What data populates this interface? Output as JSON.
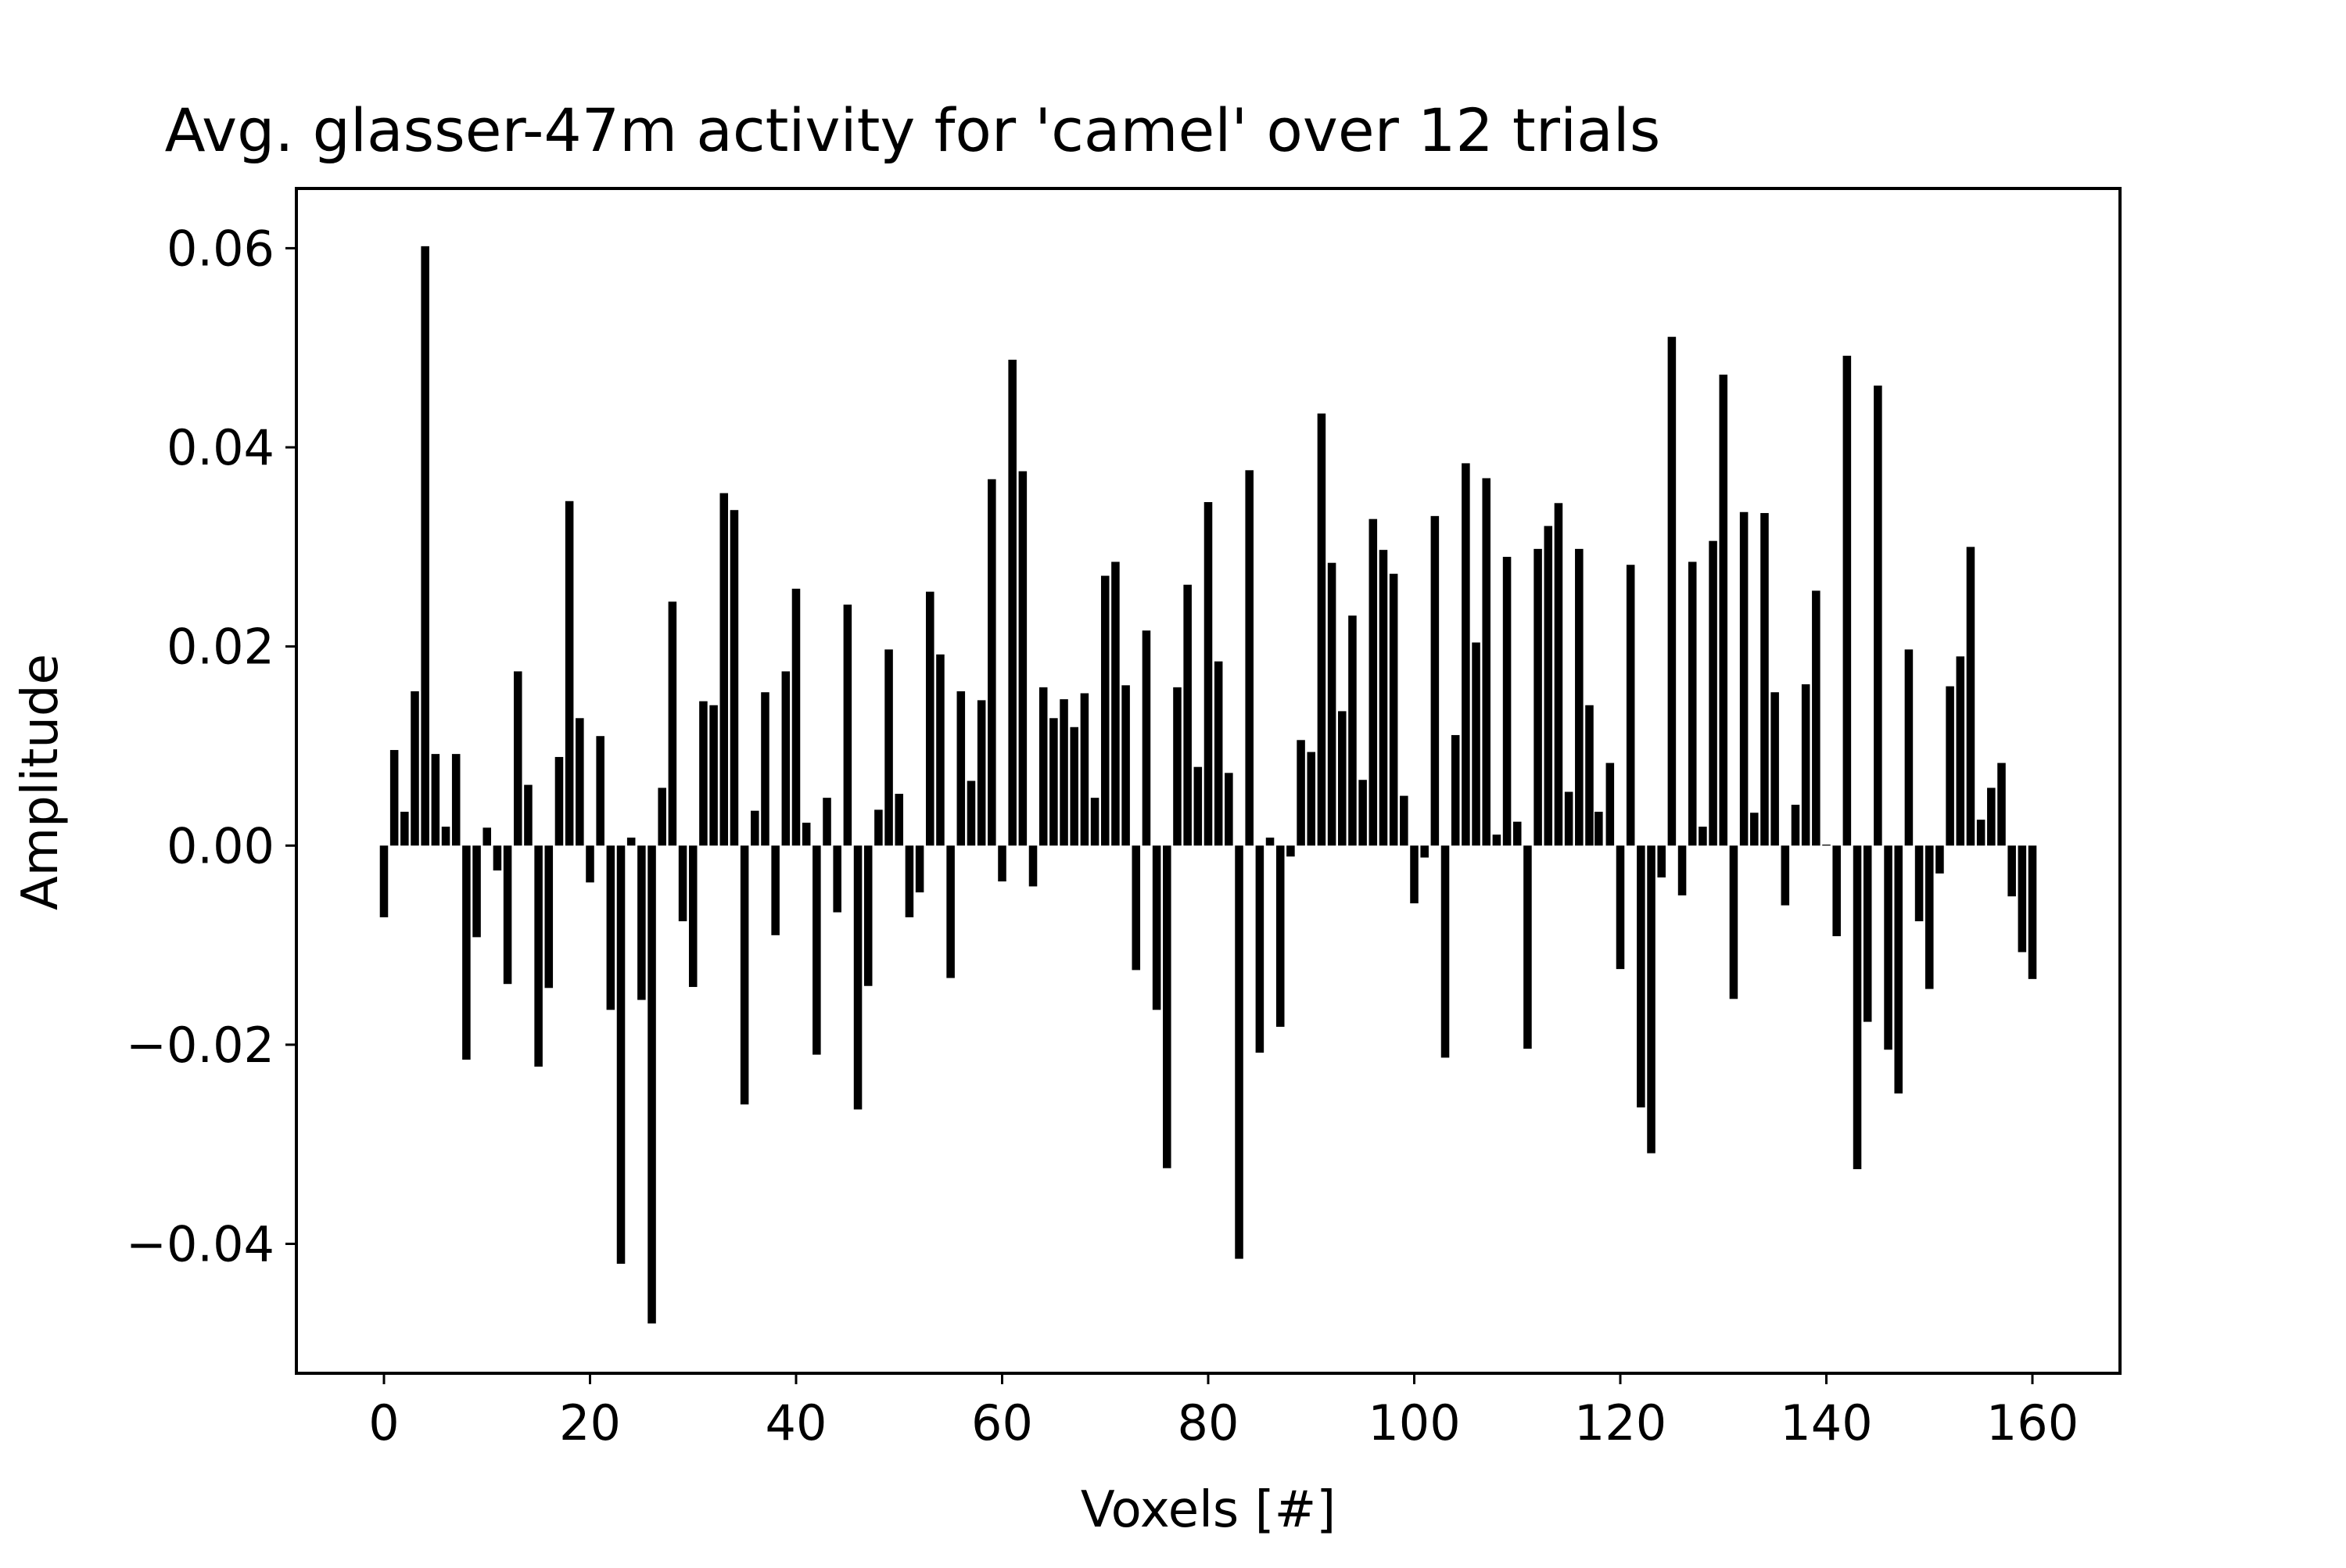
{
  "chart_data": {
    "type": "bar",
    "title": "Avg. glasser-47m activity for 'camel' over 12 trials",
    "xlabel": "Voxels [#]",
    "ylabel": "Amplitude",
    "xlim": [
      -8.5,
      168.5
    ],
    "ylim": [
      -0.053,
      0.066
    ],
    "xticks": [
      0,
      20,
      40,
      60,
      80,
      100,
      120,
      140,
      160
    ],
    "xtick_labels": [
      "0",
      "20",
      "40",
      "60",
      "80",
      "100",
      "120",
      "140",
      "160"
    ],
    "yticks": [
      -0.04,
      -0.02,
      0.0,
      0.02,
      0.04,
      0.06
    ],
    "ytick_labels": [
      "−0.04",
      "−0.02",
      "0.00",
      "0.02",
      "0.04",
      "0.06"
    ],
    "grid": false,
    "bar_color": "#000000",
    "bar_width": 0.8,
    "x": [
      0,
      1,
      2,
      3,
      4,
      5,
      6,
      7,
      8,
      9,
      10,
      11,
      12,
      13,
      14,
      15,
      16,
      17,
      18,
      19,
      20,
      21,
      22,
      23,
      24,
      25,
      26,
      27,
      28,
      29,
      30,
      31,
      32,
      33,
      34,
      35,
      36,
      37,
      38,
      39,
      40,
      41,
      42,
      43,
      44,
      45,
      46,
      47,
      48,
      49,
      50,
      51,
      52,
      53,
      54,
      55,
      56,
      57,
      58,
      59,
      60,
      61,
      62,
      63,
      64,
      65,
      66,
      67,
      68,
      69,
      70,
      71,
      72,
      73,
      74,
      75,
      76,
      77,
      78,
      79,
      80,
      81,
      82,
      83,
      84,
      85,
      86,
      87,
      88,
      89,
      90,
      91,
      92,
      93,
      94,
      95,
      96,
      97,
      98,
      99,
      100,
      101,
      102,
      103,
      104,
      105,
      106,
      107,
      108,
      109,
      110,
      111,
      112,
      113,
      114,
      115,
      116,
      117,
      117.9,
      119,
      120,
      121,
      122,
      123,
      124,
      125,
      126,
      127,
      128,
      129,
      130,
      131,
      132,
      133,
      134,
      135,
      136,
      137,
      138,
      139,
      140,
      141,
      142,
      143,
      144,
      145,
      146,
      147,
      148,
      149,
      150,
      151,
      152,
      153,
      154,
      155,
      156,
      157,
      158,
      159,
      160
    ],
    "values": [
      -0.0072,
      0.0096,
      0.0034,
      0.0155,
      0.0602,
      0.0092,
      0.0019,
      0.0092,
      -0.0215,
      -0.0092,
      0.0018,
      -0.0025,
      -0.0139,
      0.0175,
      0.0061,
      -0.0222,
      -0.0143,
      0.0089,
      0.0346,
      0.0128,
      -0.0037,
      0.011,
      -0.0165,
      -0.042,
      0.0008,
      -0.0155,
      -0.048,
      0.0058,
      0.0245,
      -0.0076,
      -0.0142,
      0.0145,
      0.0141,
      0.0354,
      0.0337,
      -0.026,
      0.0035,
      0.0154,
      -0.009,
      0.0175,
      0.0258,
      0.0023,
      -0.021,
      0.0048,
      -0.0067,
      0.0242,
      -0.0265,
      -0.0141,
      0.0036,
      0.0197,
      0.0052,
      -0.0072,
      -0.0047,
      0.0255,
      0.0192,
      -0.0133,
      0.0155,
      0.0065,
      0.0146,
      0.0368,
      -0.0036,
      0.0488,
      0.0376,
      -0.0041,
      0.0159,
      0.0128,
      0.0147,
      0.0119,
      0.0153,
      0.0048,
      0.0271,
      0.0285,
      0.0161,
      -0.0125,
      0.0216,
      -0.0165,
      -0.0324,
      0.0159,
      0.0262,
      0.0079,
      0.0345,
      0.0185,
      0.0073,
      -0.0415,
      0.0377,
      -0.0208,
      0.0008,
      -0.0182,
      -0.0011,
      0.0106,
      0.0094,
      0.0434,
      0.0284,
      0.0135,
      0.0231,
      0.0066,
      0.0328,
      0.0297,
      0.0273,
      0.005,
      -0.0058,
      -0.0012,
      0.0331,
      -0.0213,
      0.0111,
      0.0384,
      0.0204,
      0.0369,
      0.0011,
      0.029,
      0.0024,
      -0.0204,
      0.0298,
      0.0321,
      0.0344,
      0.0054,
      0.0298,
      0.0141,
      0.0034,
      0.0083,
      -0.0124,
      0.0282,
      -0.0263,
      -0.0309,
      -0.0032,
      0.0511,
      -0.005,
      0.0285,
      0.0019,
      0.0306,
      0.0473,
      -0.0154,
      0.0335,
      0.0033,
      0.0334,
      0.0154,
      -0.006,
      0.0041,
      0.0162,
      0.0256,
      0.0001,
      -0.0091,
      0.0492,
      -0.0325,
      -0.0177,
      0.0462,
      -0.0205,
      -0.0249,
      0.0197,
      -0.0076,
      -0.0144,
      -0.0028,
      0.016,
      0.019,
      0.03,
      0.0026,
      0.0058,
      0.0083,
      -0.0051,
      -0.0107,
      -0.0134
    ]
  }
}
